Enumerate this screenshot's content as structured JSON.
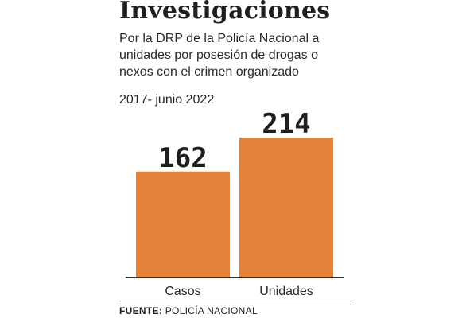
{
  "title": "Investigaciones",
  "subtitle_lines": [
    "Por la DRP de la Policía Nacional a",
    "unidades por posesión de drogas o",
    "nexos con el crimen organizado"
  ],
  "period": "2017- junio 2022",
  "source": {
    "label": "FUENTE:",
    "text": "POLICÍA NACIONAL"
  },
  "colors": {
    "bar": "#e2823b",
    "axis": "#333333",
    "value_text": "#1f1f1f"
  },
  "chart_data": {
    "type": "bar",
    "categories": [
      "Casos",
      "Unidades"
    ],
    "values": [
      162,
      214
    ],
    "ylim": [
      0,
      214
    ],
    "grid": false,
    "legend": "none",
    "xlabel": "",
    "ylabel": ""
  }
}
